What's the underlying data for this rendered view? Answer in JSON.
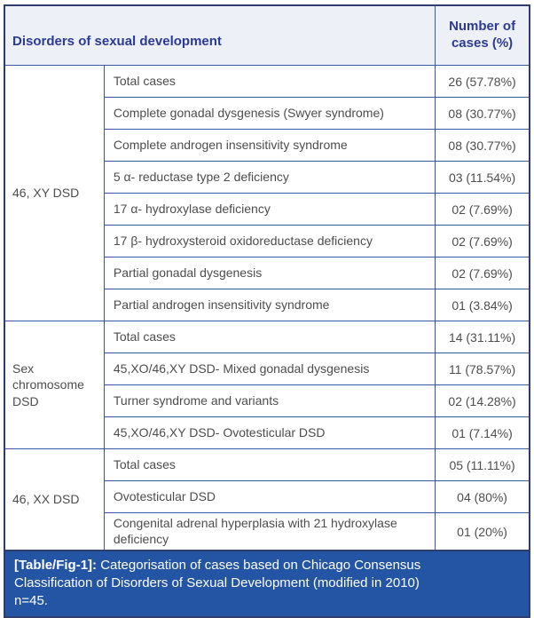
{
  "header": {
    "title": "Disorders of sexual development",
    "value_col": "Number of cases (%)"
  },
  "sections": [
    {
      "group": "46, XY DSD",
      "rows": [
        {
          "label": "Total cases",
          "value": "26 (57.78%)"
        },
        {
          "label": "Complete gonadal dysgenesis (Swyer syndrome)",
          "value": "08 (30.77%)"
        },
        {
          "label": "Complete androgen insensitivity syndrome",
          "value": "08 (30.77%)"
        },
        {
          "label": "5 α- reductase type 2 deficiency",
          "value": "03 (11.54%)"
        },
        {
          "label": "17 α- hydroxylase deficiency",
          "value": "02 (7.69%)"
        },
        {
          "label": "17 β- hydroxysteroid oxidoreductase deficiency",
          "value": "02 (7.69%)"
        },
        {
          "label": "Partial gonadal dysgenesis",
          "value": "02 (7.69%)"
        },
        {
          "label": "Partial androgen insensitivity syndrome",
          "value": "01 (3.84%)"
        }
      ]
    },
    {
      "group": "Sex chromosome DSD",
      "rows": [
        {
          "label": "Total cases",
          "value": "14 (31.11%)"
        },
        {
          "label": "45,XO/46,XY DSD- Mixed gonadal dysgenesis",
          "value": "11 (78.57%)"
        },
        {
          "label": "Turner syndrome and variants",
          "value": "02 (14.28%)"
        },
        {
          "label": "45,XO/46,XY DSD- Ovotesticular DSD",
          "value": "01 (7.14%)"
        }
      ]
    },
    {
      "group": "46, XX DSD",
      "rows": [
        {
          "label": "Total cases",
          "value": "05 (11.11%)"
        },
        {
          "label": "Ovotesticular DSD",
          "value": "04 (80%)"
        },
        {
          "label": "Congenital adrenal hyperplasia with 21 hydroxylase deficiency",
          "value": "01 (20%)"
        }
      ]
    }
  ],
  "caption": {
    "label": "[Table/Fig-1]:",
    "text": "Categorisation of cases based on Chicago Consensus Classification of Disorders of Sexual Development (modified in 2010) n=45."
  },
  "colors": {
    "header_bg": "#eef0f7",
    "header_text": "#2b3a94",
    "inner_border": "#3a57a6",
    "outer_border": "#2e3d6b",
    "body_text": "#4d4d4d",
    "caption_bg": "#2355a4",
    "caption_text": "#ffffff"
  }
}
